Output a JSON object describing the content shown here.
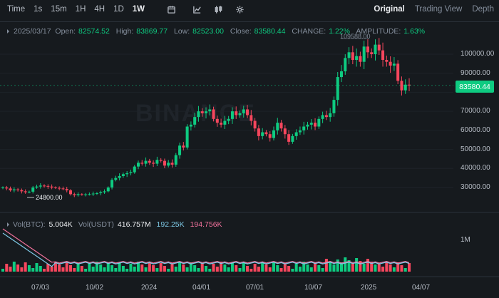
{
  "toolbar": {
    "timeframes": [
      "Time",
      "1s",
      "15m",
      "1H",
      "4H",
      "1D",
      "1W"
    ],
    "active_timeframe": "1W",
    "icons": [
      "calendar-icon",
      "indicator-icon",
      "candle-settings-icon",
      "settings-icon"
    ],
    "modes": [
      "Original",
      "Trading View",
      "Depth"
    ],
    "active_mode": "Original"
  },
  "ohlc": {
    "date": "2025/03/17",
    "open_label": "Open:",
    "open": "82574.52",
    "high_label": "High:",
    "high": "83869.77",
    "low_label": "Low:",
    "low": "82523.00",
    "close_label": "Close:",
    "close": "83580.44",
    "change_label": "CHANGE:",
    "change": "1.22%",
    "amplitude_label": "AMPLITUDE:",
    "amplitude": "1.63%"
  },
  "price_axis": [
    "100000.00",
    "90000.00",
    "80000.00",
    "70000.00",
    "60000.00",
    "50000.00",
    "40000.00",
    "30000.00"
  ],
  "current_price": "83580.44",
  "annotations": {
    "high_marker": "109588.00",
    "low_marker": "24800.00"
  },
  "watermark": "BINANCE",
  "volume": {
    "btc_label": "Vol(BTC):",
    "btc_value": "5.004K",
    "usdt_label": "Vol(USDT)",
    "usdt_value": "416.757M",
    "ma1": "192.25K",
    "ma2": "194.756K",
    "axis_label": "1M"
  },
  "x_axis": [
    "07/03",
    "10/02",
    "2024",
    "04/01",
    "07/01",
    "10/07",
    "2025",
    "04/07"
  ],
  "colors": {
    "up": "#0ecb81",
    "down": "#f6465d",
    "bg": "#161a1e",
    "grid": "#2b3139",
    "ma1": "#7ec9e6",
    "ma2": "#f0719b"
  },
  "chart_data": {
    "type": "candlestick",
    "ylim": [
      24000,
      110000
    ],
    "note_values": "weekly closes estimated from chart",
    "closes": [
      30000,
      29500,
      28500,
      29000,
      28600,
      28000,
      27500,
      27800,
      30000,
      30500,
      31000,
      30800,
      30500,
      30000,
      29800,
      29500,
      29200,
      28500,
      26500,
      26000,
      26500,
      26200,
      26400,
      26500,
      26800,
      27000,
      27500,
      28000,
      30000,
      34000,
      35000,
      36000,
      37000,
      37500,
      38000,
      41000,
      43000,
      42500,
      44000,
      43000,
      42500,
      44500,
      44000,
      41500,
      43000,
      42000,
      47000,
      52000,
      51000,
      62000,
      63000,
      67000,
      70000,
      69000,
      70000,
      71000,
      66000,
      64000,
      63000,
      65000,
      66000,
      70000,
      68000,
      69000,
      71000,
      68000,
      65000,
      61000,
      57000,
      59000,
      58000,
      56000,
      60000,
      64000,
      61000,
      58000,
      54000,
      57000,
      59000,
      60000,
      62000,
      63000,
      64000,
      62000,
      66000,
      68000,
      67000,
      69000,
      76000,
      88000,
      91000,
      98000,
      101000,
      97000,
      99000,
      96000,
      104000,
      101000,
      100000,
      105000,
      102000,
      97000,
      96000,
      94000,
      95000,
      86000,
      81000,
      84000,
      83580
    ]
  }
}
